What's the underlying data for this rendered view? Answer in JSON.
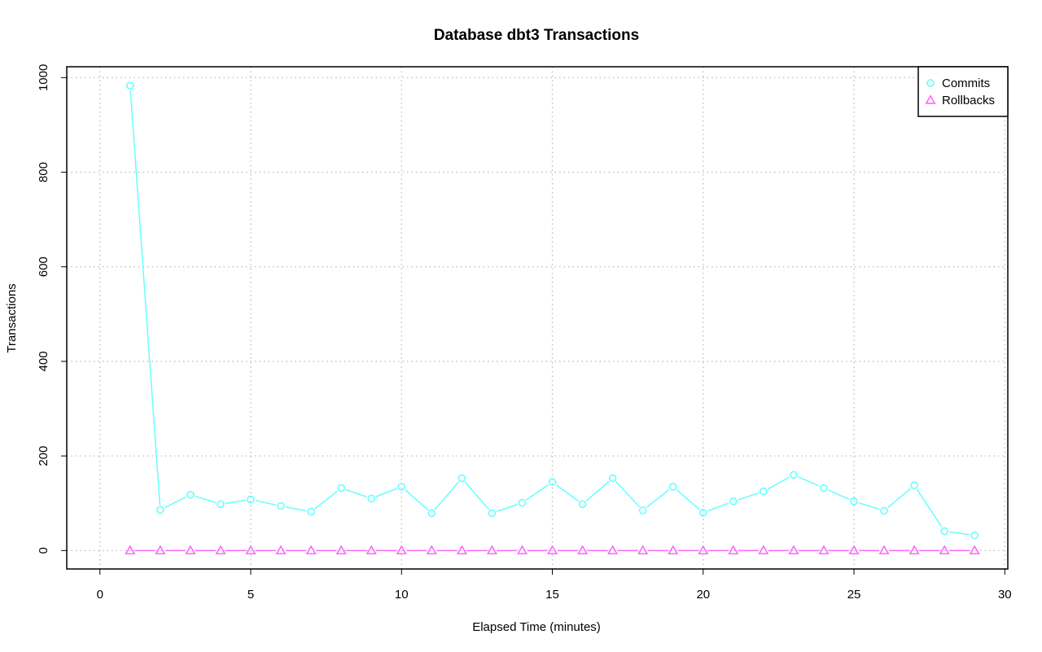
{
  "chart_data": {
    "type": "line",
    "title": "Database dbt3 Transactions",
    "xlabel": "Elapsed Time (minutes)",
    "ylabel": "Transactions",
    "xlim": [
      -1.1,
      30.1
    ],
    "ylim": [
      -39,
      1023
    ],
    "xticks": [
      0,
      5,
      10,
      15,
      20,
      25,
      30
    ],
    "yticks": [
      0,
      200,
      400,
      600,
      800,
      1000
    ],
    "grid": true,
    "legend_position": "top-right",
    "x": [
      1,
      2,
      3,
      4,
      5,
      6,
      7,
      8,
      9,
      10,
      11,
      12,
      13,
      14,
      15,
      16,
      17,
      18,
      19,
      20,
      21,
      22,
      23,
      24,
      25,
      26,
      27,
      28,
      29
    ],
    "series": [
      {
        "name": "Commits",
        "marker": "circle",
        "color": "#66ffff",
        "values": [
          983,
          86,
          118,
          98,
          108,
          94,
          82,
          132,
          110,
          135,
          79,
          153,
          79,
          101,
          145,
          98,
          153,
          85,
          135,
          80,
          104,
          125,
          160,
          132,
          104,
          84,
          138,
          41,
          32
        ]
      },
      {
        "name": "Rollbacks",
        "marker": "triangle",
        "color": "#ff66ff",
        "values": [
          0,
          0,
          0,
          0,
          0,
          0,
          0,
          0,
          0,
          0,
          0,
          0,
          0,
          0,
          0,
          0,
          0,
          0,
          0,
          0,
          0,
          0,
          0,
          0,
          0,
          0,
          0,
          0,
          0
        ]
      }
    ]
  }
}
